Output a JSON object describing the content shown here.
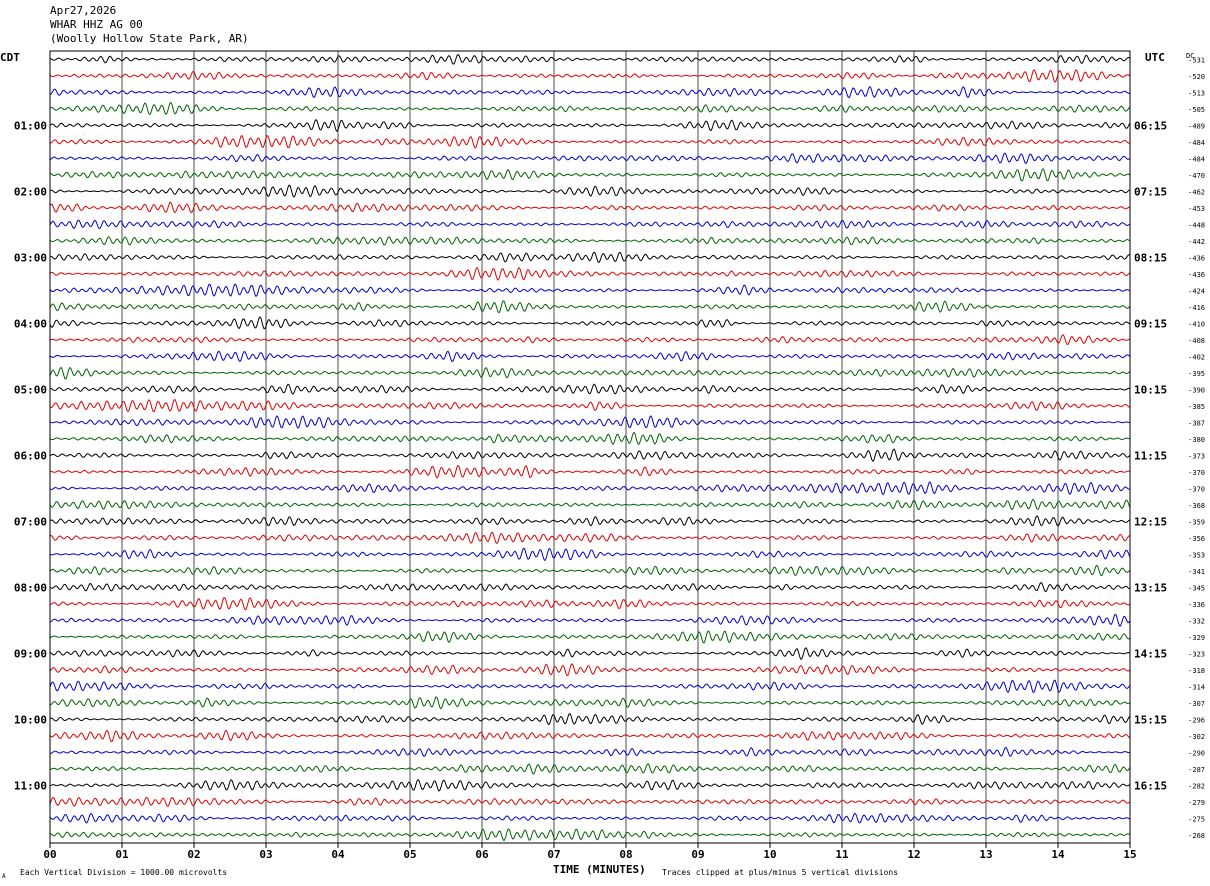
{
  "header": {
    "date": "Apr27,2026",
    "station": "WHAR HHZ AG 00",
    "location": "(Woolly Hollow State Park, AR)"
  },
  "left_axis_title": "CDT",
  "right_axis_title": "UTC",
  "dc_label": "DC",
  "footer": {
    "scale_note": "Each Vertical Division = 1000.00 microvolts",
    "clip_note": "Traces clipped at plus/minus 5 vertical divisions",
    "corner_mark": "A"
  },
  "colors": {
    "trace_cycle": [
      "#000000",
      "#e00000",
      "#0000d0",
      "#006400"
    ],
    "grid": "#000000",
    "background": "#ffffff"
  },
  "chart_data": {
    "type": "line",
    "title": "Apr27,2026 WHAR HHZ AG 00 (Woolly Hollow State Park, AR)",
    "xlabel": "TIME (MINUTES)",
    "ylabel": "",
    "xlim": [
      0,
      15
    ],
    "x_ticks": [
      "00",
      "01",
      "02",
      "03",
      "04",
      "05",
      "06",
      "07",
      "08",
      "09",
      "10",
      "11",
      "12",
      "13",
      "14",
      "15"
    ],
    "trace_count": 48,
    "minutes_per_trace": 15,
    "local_time_labels": [
      {
        "trace": 4,
        "label": "01:00"
      },
      {
        "trace": 8,
        "label": "02:00"
      },
      {
        "trace": 12,
        "label": "03:00"
      },
      {
        "trace": 16,
        "label": "04:00"
      },
      {
        "trace": 20,
        "label": "05:00"
      },
      {
        "trace": 24,
        "label": "06:00"
      },
      {
        "trace": 28,
        "label": "07:00"
      },
      {
        "trace": 32,
        "label": "08:00"
      },
      {
        "trace": 36,
        "label": "09:00"
      },
      {
        "trace": 40,
        "label": "10:00"
      },
      {
        "trace": 44,
        "label": "11:00"
      }
    ],
    "utc_time_labels": [
      {
        "trace": 4,
        "label": "06:15"
      },
      {
        "trace": 8,
        "label": "07:15"
      },
      {
        "trace": 12,
        "label": "08:15"
      },
      {
        "trace": 16,
        "label": "09:15"
      },
      {
        "trace": 20,
        "label": "10:15"
      },
      {
        "trace": 24,
        "label": "11:15"
      },
      {
        "trace": 28,
        "label": "12:15"
      },
      {
        "trace": 32,
        "label": "13:15"
      },
      {
        "trace": 36,
        "label": "14:15"
      },
      {
        "trace": 40,
        "label": "15:15"
      },
      {
        "trace": 44,
        "label": "16:15"
      }
    ],
    "dc_offsets": [
      -531,
      -520,
      -513,
      -505,
      -489,
      -484,
      -484,
      -470,
      -462,
      -453,
      -448,
      -442,
      -436,
      -436,
      -424,
      -416,
      -410,
      -408,
      -402,
      -395,
      -390,
      -385,
      -387,
      -380,
      -373,
      -370,
      -370,
      -368,
      -359,
      -356,
      -353,
      -341,
      -345,
      -336,
      -332,
      -329,
      -323,
      -318,
      -314,
      -307,
      -296,
      -302,
      -290,
      -287,
      -282,
      -279,
      -275,
      -268
    ],
    "scale_microvolts_per_division": 1000.0,
    "clip_divisions": 5
  }
}
